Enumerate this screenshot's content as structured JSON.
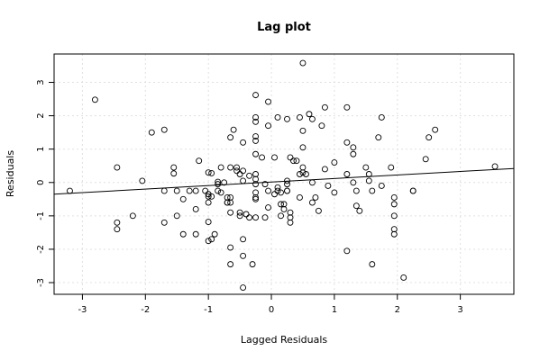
{
  "chart_data": {
    "type": "scatter",
    "title": "Lag plot",
    "xlabel": "Lagged Residuals",
    "ylabel": "Residuals",
    "xlim": [
      -3.45,
      3.85
    ],
    "ylim": [
      -3.35,
      3.85
    ],
    "xticks": [
      -3,
      -2,
      -1,
      0,
      1,
      2,
      3
    ],
    "yticks": [
      -3,
      -2,
      -1,
      0,
      1,
      2,
      3
    ],
    "grid": true,
    "regression_line": {
      "x": [
        -3.45,
        3.85
      ],
      "y": [
        -0.35,
        0.42
      ]
    },
    "points": [
      [
        -3.2,
        -0.25
      ],
      [
        -2.8,
        2.48
      ],
      [
        -2.45,
        0.45
      ],
      [
        -2.45,
        -1.2
      ],
      [
        -2.45,
        -1.4
      ],
      [
        -2.2,
        -1.0
      ],
      [
        -2.05,
        0.05
      ],
      [
        -1.9,
        1.5
      ],
      [
        -1.7,
        1.58
      ],
      [
        -1.7,
        -1.2
      ],
      [
        -1.7,
        -0.25
      ],
      [
        -1.55,
        0.45
      ],
      [
        -1.55,
        0.27
      ],
      [
        -1.5,
        -1.0
      ],
      [
        -1.5,
        -0.25
      ],
      [
        -1.4,
        -0.5
      ],
      [
        -1.4,
        -1.55
      ],
      [
        -1.3,
        -0.25
      ],
      [
        -1.2,
        -0.25
      ],
      [
        -1.2,
        -0.8
      ],
      [
        -1.2,
        -1.55
      ],
      [
        -1.15,
        0.65
      ],
      [
        -1.05,
        -0.25
      ],
      [
        -1.0,
        0.3
      ],
      [
        -1.0,
        -0.35
      ],
      [
        -1.0,
        -0.42
      ],
      [
        -1.0,
        -0.6
      ],
      [
        -1.0,
        -1.18
      ],
      [
        -1.0,
        -1.75
      ],
      [
        -0.95,
        0.28
      ],
      [
        -0.95,
        -0.42
      ],
      [
        -0.95,
        -1.7
      ],
      [
        -0.9,
        -1.55
      ],
      [
        -0.85,
        0.02
      ],
      [
        -0.85,
        -0.05
      ],
      [
        -0.85,
        -0.25
      ],
      [
        -0.8,
        0.45
      ],
      [
        -0.8,
        -0.3
      ],
      [
        -0.75,
        0.0
      ],
      [
        -0.7,
        -0.6
      ],
      [
        -0.7,
        -0.45
      ],
      [
        -0.7,
        -0.6
      ],
      [
        -0.65,
        1.35
      ],
      [
        -0.65,
        0.45
      ],
      [
        -0.65,
        -0.45
      ],
      [
        -0.65,
        -0.6
      ],
      [
        -0.65,
        -0.9
      ],
      [
        -0.65,
        -1.95
      ],
      [
        -0.65,
        -2.45
      ],
      [
        -0.6,
        1.58
      ],
      [
        -0.55,
        0.35
      ],
      [
        -0.55,
        0.45
      ],
      [
        -0.5,
        0.25
      ],
      [
        -0.5,
        -0.9
      ],
      [
        -0.5,
        -1.0
      ],
      [
        -0.45,
        1.2
      ],
      [
        -0.45,
        0.35
      ],
      [
        -0.45,
        0.05
      ],
      [
        -0.45,
        -1.7
      ],
      [
        -0.45,
        -2.2
      ],
      [
        -0.45,
        -3.15
      ],
      [
        -0.4,
        -0.95
      ],
      [
        -0.35,
        0.2
      ],
      [
        -0.35,
        -1.05
      ],
      [
        -0.3,
        -2.45
      ],
      [
        -0.25,
        2.62
      ],
      [
        -0.25,
        1.95
      ],
      [
        -0.25,
        1.82
      ],
      [
        -0.25,
        1.38
      ],
      [
        -0.25,
        1.25
      ],
      [
        -0.25,
        0.85
      ],
      [
        -0.25,
        0.25
      ],
      [
        -0.25,
        0.1
      ],
      [
        -0.25,
        -0.05
      ],
      [
        -0.25,
        -0.3
      ],
      [
        -0.25,
        -0.45
      ],
      [
        -0.25,
        -0.5
      ],
      [
        -0.25,
        -1.05
      ],
      [
        -0.15,
        0.75
      ],
      [
        -0.1,
        -0.05
      ],
      [
        -0.1,
        -1.05
      ],
      [
        -0.05,
        2.42
      ],
      [
        -0.05,
        1.7
      ],
      [
        -0.05,
        -0.25
      ],
      [
        -0.05,
        -0.75
      ],
      [
        0.05,
        0.75
      ],
      [
        0.05,
        -0.35
      ],
      [
        0.1,
        1.95
      ],
      [
        0.1,
        -0.15
      ],
      [
        0.1,
        -0.25
      ],
      [
        0.15,
        -0.3
      ],
      [
        0.15,
        -0.65
      ],
      [
        0.15,
        -1.0
      ],
      [
        0.2,
        -0.65
      ],
      [
        0.2,
        -0.8
      ],
      [
        0.25,
        1.9
      ],
      [
        0.25,
        0.05
      ],
      [
        0.25,
        -0.05
      ],
      [
        0.25,
        -0.25
      ],
      [
        0.25,
        -0.25
      ],
      [
        0.3,
        0.75
      ],
      [
        0.3,
        -0.9
      ],
      [
        0.3,
        -1.05
      ],
      [
        0.3,
        -1.2
      ],
      [
        0.35,
        0.65
      ],
      [
        0.4,
        0.65
      ],
      [
        0.45,
        1.95
      ],
      [
        0.45,
        0.25
      ],
      [
        0.45,
        -0.45
      ],
      [
        0.5,
        3.58
      ],
      [
        0.5,
        1.55
      ],
      [
        0.5,
        1.05
      ],
      [
        0.5,
        0.45
      ],
      [
        0.5,
        0.3
      ],
      [
        0.55,
        0.25
      ],
      [
        0.6,
        2.05
      ],
      [
        0.65,
        1.9
      ],
      [
        0.65,
        0.0
      ],
      [
        0.65,
        -0.6
      ],
      [
        0.7,
        -0.45
      ],
      [
        0.75,
        -0.85
      ],
      [
        0.8,
        1.7
      ],
      [
        0.85,
        2.25
      ],
      [
        0.85,
        0.4
      ],
      [
        0.9,
        -0.1
      ],
      [
        1.0,
        0.6
      ],
      [
        1.0,
        -0.3
      ],
      [
        1.2,
        2.25
      ],
      [
        1.2,
        1.2
      ],
      [
        1.2,
        0.25
      ],
      [
        1.2,
        -2.05
      ],
      [
        1.3,
        1.05
      ],
      [
        1.3,
        0.85
      ],
      [
        1.3,
        0.0
      ],
      [
        1.35,
        -0.25
      ],
      [
        1.35,
        -0.7
      ],
      [
        1.4,
        -0.85
      ],
      [
        1.5,
        0.45
      ],
      [
        1.55,
        0.25
      ],
      [
        1.55,
        0.05
      ],
      [
        1.6,
        -0.25
      ],
      [
        1.6,
        -2.45
      ],
      [
        1.7,
        1.35
      ],
      [
        1.75,
        -0.1
      ],
      [
        1.75,
        1.95
      ],
      [
        1.9,
        0.45
      ],
      [
        1.95,
        -0.45
      ],
      [
        1.95,
        -0.65
      ],
      [
        1.95,
        -1.0
      ],
      [
        1.95,
        -1.4
      ],
      [
        1.95,
        -1.55
      ],
      [
        2.1,
        -2.85
      ],
      [
        2.25,
        -0.25
      ],
      [
        2.25,
        -0.25
      ],
      [
        2.45,
        0.7
      ],
      [
        2.5,
        1.35
      ],
      [
        2.6,
        1.58
      ],
      [
        3.55,
        0.48
      ]
    ]
  }
}
